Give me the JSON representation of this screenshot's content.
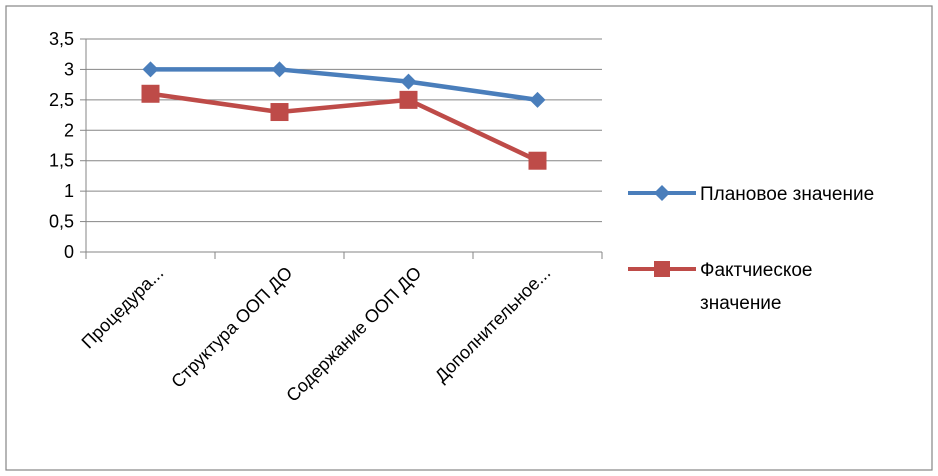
{
  "chart_data": {
    "type": "line",
    "categories": [
      "Процедура...",
      "Структура ООП ДО",
      "Содержание ООП ДО",
      "Дополнительное..."
    ],
    "series": [
      {
        "name": "Плановое значение",
        "values": [
          3,
          3,
          2.8,
          2.5
        ],
        "color": "#4a7ebb",
        "marker": "diamond"
      },
      {
        "name": "Фактчиеское значение",
        "values": [
          2.6,
          2.3,
          2.5,
          1.5
        ],
        "color": "#be4b48",
        "marker": "square"
      }
    ],
    "ylim": [
      0,
      3.5
    ],
    "yticks": [
      "0",
      "0,5",
      "1",
      "1,5",
      "2",
      "2,5",
      "3",
      "3,5"
    ],
    "grid": true,
    "legend_position": "right"
  },
  "legend": {
    "item_1": "Плановое значение",
    "item_2_line1": "Фактчиеское",
    "item_2_line2": "значение"
  }
}
